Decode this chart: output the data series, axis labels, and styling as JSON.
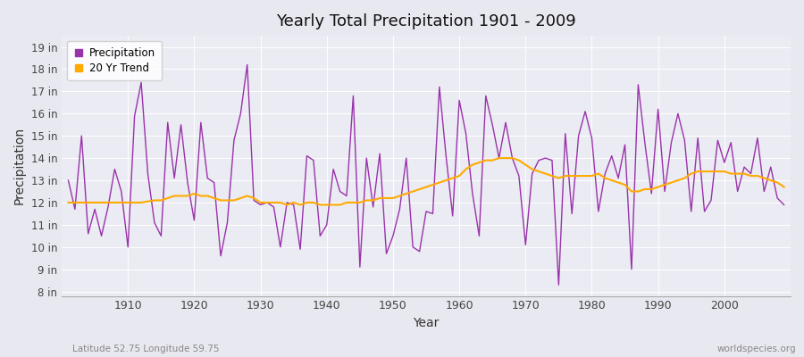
{
  "title": "Yearly Total Precipitation 1901 - 2009",
  "xlabel": "Year",
  "ylabel": "Precipitation",
  "subtitle_left": "Latitude 52.75 Longitude 59.75",
  "subtitle_right": "worldspecies.org",
  "bg_color": "#e8e8f0",
  "plot_bg_color": "#ebebf3",
  "grid_color": "#ffffff",
  "precip_color": "#9933aa",
  "trend_color": "#ffaa00",
  "ylim": [
    7.8,
    19.5
  ],
  "yticks": [
    8,
    9,
    10,
    11,
    12,
    13,
    14,
    15,
    16,
    17,
    18,
    19
  ],
  "ytick_labels": [
    "8 in",
    "9 in",
    "10 in",
    "11 in",
    "12 in",
    "13 in",
    "14 in",
    "15 in",
    "16 in",
    "17 in",
    "18 in",
    "19 in"
  ],
  "years": [
    1901,
    1902,
    1903,
    1904,
    1905,
    1906,
    1907,
    1908,
    1909,
    1910,
    1911,
    1912,
    1913,
    1914,
    1915,
    1916,
    1917,
    1918,
    1919,
    1920,
    1921,
    1922,
    1923,
    1924,
    1925,
    1926,
    1927,
    1928,
    1929,
    1930,
    1931,
    1932,
    1933,
    1934,
    1935,
    1936,
    1937,
    1938,
    1939,
    1940,
    1941,
    1942,
    1943,
    1944,
    1945,
    1946,
    1947,
    1948,
    1949,
    1950,
    1951,
    1952,
    1953,
    1954,
    1955,
    1956,
    1957,
    1958,
    1959,
    1960,
    1961,
    1962,
    1963,
    1964,
    1965,
    1966,
    1967,
    1968,
    1969,
    1970,
    1971,
    1972,
    1973,
    1974,
    1975,
    1976,
    1977,
    1978,
    1979,
    1980,
    1981,
    1982,
    1983,
    1984,
    1985,
    1986,
    1987,
    1988,
    1989,
    1990,
    1991,
    1992,
    1993,
    1994,
    1995,
    1996,
    1997,
    1998,
    1999,
    2000,
    2001,
    2002,
    2003,
    2004,
    2005,
    2006,
    2007,
    2008,
    2009
  ],
  "precip": [
    13.0,
    11.7,
    15.0,
    10.6,
    11.7,
    10.5,
    11.8,
    13.5,
    12.5,
    10.0,
    15.9,
    17.4,
    13.3,
    11.1,
    10.5,
    15.6,
    13.1,
    15.5,
    12.9,
    11.2,
    15.6,
    13.1,
    12.9,
    9.6,
    11.1,
    14.8,
    16.0,
    18.2,
    12.1,
    11.9,
    12.0,
    11.8,
    10.0,
    12.0,
    11.9,
    9.9,
    14.1,
    13.9,
    10.5,
    11.0,
    13.5,
    12.5,
    12.3,
    16.8,
    9.1,
    14.0,
    11.8,
    14.2,
    9.7,
    10.5,
    11.7,
    14.0,
    10.0,
    9.8,
    11.6,
    11.5,
    17.2,
    14.1,
    11.4,
    16.6,
    15.1,
    12.4,
    10.5,
    16.8,
    15.5,
    14.0,
    15.6,
    14.0,
    13.2,
    10.1,
    13.3,
    13.9,
    14.0,
    13.9,
    8.3,
    15.1,
    11.5,
    15.0,
    16.1,
    14.9,
    11.6,
    13.3,
    14.1,
    13.1,
    14.6,
    9.0,
    17.3,
    14.7,
    12.4,
    16.2,
    12.5,
    14.7,
    16.0,
    14.8,
    11.6,
    14.9,
    11.6,
    12.1,
    14.8,
    13.8,
    14.7,
    12.5,
    13.6,
    13.3,
    14.9,
    12.5,
    13.6,
    12.2,
    11.9
  ],
  "trend": [
    12.0,
    12.0,
    12.0,
    12.0,
    12.0,
    12.0,
    12.0,
    12.0,
    12.0,
    12.0,
    12.0,
    12.0,
    12.05,
    12.1,
    12.1,
    12.2,
    12.3,
    12.3,
    12.3,
    12.4,
    12.3,
    12.3,
    12.2,
    12.1,
    12.1,
    12.1,
    12.2,
    12.3,
    12.2,
    12.0,
    12.0,
    12.0,
    12.0,
    11.9,
    12.0,
    11.9,
    12.0,
    12.0,
    11.9,
    11.9,
    11.9,
    11.9,
    12.0,
    12.0,
    12.0,
    12.1,
    12.1,
    12.2,
    12.2,
    12.2,
    12.3,
    12.4,
    12.5,
    12.6,
    12.7,
    12.8,
    12.9,
    13.0,
    13.1,
    13.2,
    13.5,
    13.7,
    13.8,
    13.9,
    13.9,
    14.0,
    14.0,
    14.0,
    13.9,
    13.7,
    13.5,
    13.4,
    13.3,
    13.2,
    13.1,
    13.2,
    13.2,
    13.2,
    13.2,
    13.2,
    13.3,
    13.1,
    13.0,
    12.9,
    12.8,
    12.5,
    12.5,
    12.6,
    12.6,
    12.7,
    12.8,
    12.9,
    13.0,
    13.1,
    13.3,
    13.4,
    13.4,
    13.4,
    13.4,
    13.4,
    13.3,
    13.3,
    13.3,
    13.2,
    13.2,
    13.1,
    13.0,
    12.9,
    12.7
  ]
}
